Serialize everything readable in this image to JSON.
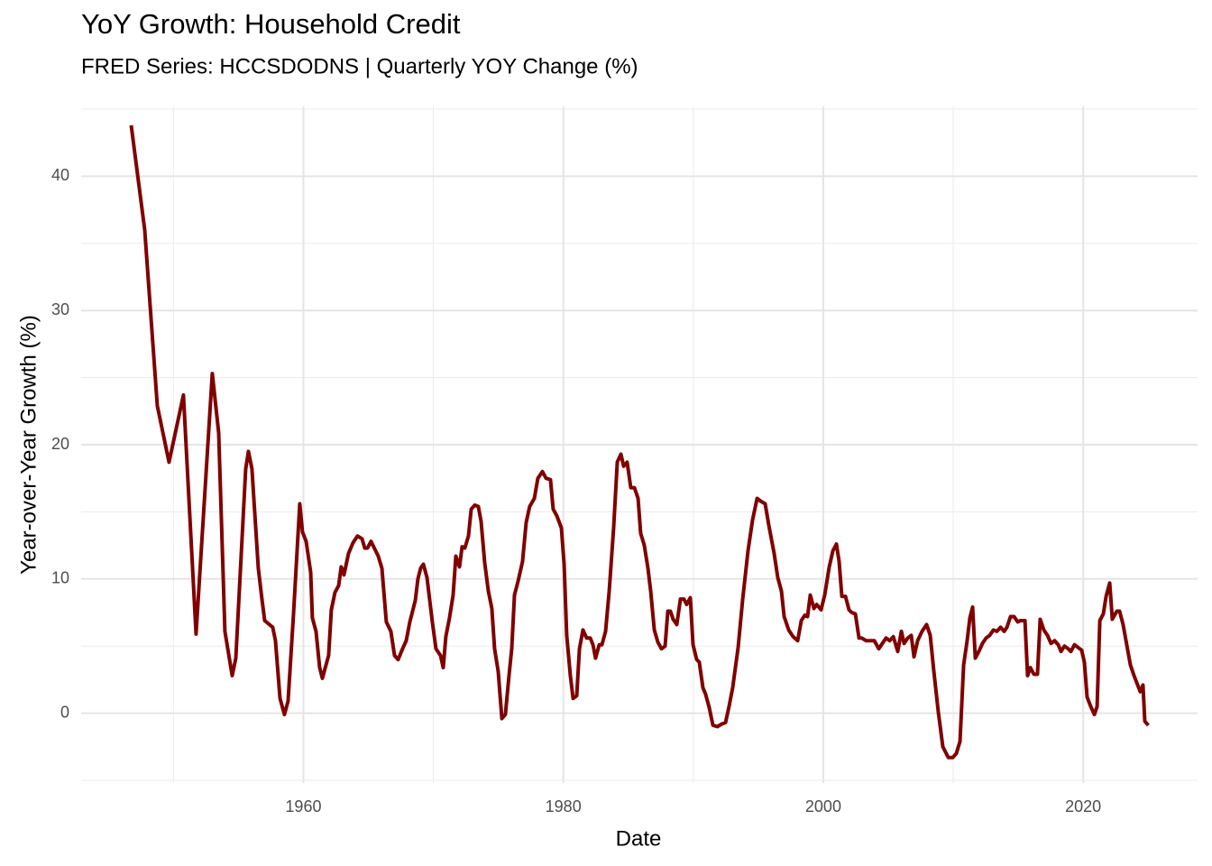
{
  "chart_data": {
    "type": "line",
    "title": "YoY Growth: Household Credit",
    "subtitle": "FRED Series: HCCSDODNS | Quarterly YOY Change (%)",
    "xlabel": "Date",
    "ylabel": "Year-over-Year Growth (%)",
    "color": "#800000",
    "grid": true,
    "xlim": [
      1942.9,
      2028.8
    ],
    "ylim": [
      -5.2,
      45.2
    ],
    "xticks": [
      1960,
      1980,
      2000,
      2020
    ],
    "yticks": [
      0,
      10,
      20,
      30,
      40
    ],
    "xminor": [
      1950,
      1970,
      1990,
      2010
    ],
    "yminor": [
      -5,
      5,
      15,
      25,
      35,
      45
    ],
    "x": [
      1946.75,
      1947.79,
      1948.76,
      1949.66,
      1950.77,
      1951.74,
      1952.99,
      1953.48,
      1953.96,
      1954.52,
      1954.8,
      1955.56,
      1955.77,
      1956.04,
      1956.53,
      1956.81,
      1957.02,
      1957.64,
      1957.85,
      1958.2,
      1958.54,
      1958.82,
      1959.24,
      1959.72,
      1959.93,
      1960.21,
      1960.56,
      1960.69,
      1960.97,
      1961.25,
      1961.46,
      1961.94,
      1962.15,
      1962.43,
      1962.71,
      1962.91,
      1963.12,
      1963.47,
      1963.82,
      1964.16,
      1964.51,
      1964.72,
      1964.93,
      1965.2,
      1965.76,
      1966.04,
      1966.38,
      1966.73,
      1967.01,
      1967.29,
      1967.63,
      1967.91,
      1968.19,
      1968.61,
      1968.81,
      1969.02,
      1969.23,
      1969.51,
      1969.92,
      1970.2,
      1970.55,
      1970.76,
      1970.96,
      1971.24,
      1971.52,
      1971.73,
      1972.01,
      1972.21,
      1972.42,
      1972.7,
      1972.91,
      1973.19,
      1973.46,
      1973.67,
      1973.95,
      1974.23,
      1974.5,
      1974.71,
      1974.99,
      1975.27,
      1975.54,
      1975.82,
      1976.03,
      1976.24,
      1976.51,
      1976.86,
      1977.14,
      1977.41,
      1977.77,
      1978.04,
      1978.39,
      1978.67,
      1979.01,
      1979.22,
      1979.5,
      1979.85,
      1980.06,
      1980.26,
      1980.54,
      1980.75,
      1981.03,
      1981.24,
      1981.51,
      1981.79,
      1982.07,
      1982.28,
      1982.48,
      1982.76,
      1982.97,
      1983.25,
      1983.53,
      1983.87,
      1984.15,
      1984.43,
      1984.64,
      1984.91,
      1985.19,
      1985.47,
      1985.75,
      1985.95,
      1986.23,
      1986.51,
      1986.72,
      1987.0,
      1987.27,
      1987.55,
      1987.83,
      1988.04,
      1988.24,
      1988.45,
      1988.73,
      1989.01,
      1989.28,
      1989.49,
      1989.77,
      1989.98,
      1990.26,
      1990.46,
      1990.74,
      1990.95,
      1991.23,
      1991.51,
      1991.85,
      1992.2,
      1992.48,
      1992.75,
      1993.03,
      1993.45,
      1993.8,
      1994.21,
      1994.56,
      1994.91,
      1995.18,
      1995.53,
      1995.81,
      1996.22,
      1996.5,
      1996.78,
      1996.99,
      1997.34,
      1997.68,
      1998.03,
      1998.31,
      1998.58,
      1998.79,
      1999.0,
      1999.28,
      1999.49,
      1999.83,
      2000.11,
      2000.46,
      2000.74,
      2001.01,
      2001.22,
      2001.43,
      2001.71,
      2001.98,
      2002.19,
      2002.47,
      2002.75,
      2002.96,
      2003.3,
      2003.58,
      2003.93,
      2004.27,
      2004.55,
      2004.83,
      2005.11,
      2005.39,
      2005.73,
      2006.01,
      2006.22,
      2006.5,
      2006.77,
      2006.98,
      2007.26,
      2007.6,
      2007.95,
      2008.23,
      2008.51,
      2008.85,
      2009.2,
      2009.62,
      2009.96,
      2010.24,
      2010.52,
      2010.8,
      2011.07,
      2011.28,
      2011.49,
      2011.7,
      2011.97,
      2012.25,
      2012.53,
      2012.81,
      2013.09,
      2013.36,
      2013.64,
      2013.92,
      2014.13,
      2014.41,
      2014.68,
      2014.96,
      2015.17,
      2015.52,
      2015.72,
      2015.93,
      2016.21,
      2016.48,
      2016.69,
      2016.97,
      2017.25,
      2017.52,
      2017.8,
      2018.08,
      2018.29,
      2018.56,
      2018.84,
      2019.05,
      2019.33,
      2019.6,
      2019.88,
      2020.09,
      2020.3,
      2020.58,
      2020.86,
      2021.07,
      2021.28,
      2021.55,
      2021.76,
      2022.04,
      2022.24,
      2022.59,
      2022.8,
      2023.07,
      2023.35,
      2023.63,
      2023.91,
      2024.19,
      2024.39,
      2024.6,
      2024.74,
      2025.01
    ],
    "values": [
      43.8,
      36.0,
      22.9,
      18.7,
      23.7,
      5.9,
      25.3,
      20.9,
      6.1,
      2.8,
      4.1,
      18.2,
      19.5,
      18.2,
      10.8,
      8.5,
      6.9,
      6.4,
      5.4,
      1.1,
      -0.1,
      0.9,
      7.4,
      15.6,
      13.5,
      12.8,
      10.5,
      7.1,
      6.1,
      3.4,
      2.6,
      4.3,
      7.7,
      9.0,
      9.5,
      10.9,
      10.3,
      11.9,
      12.7,
      13.2,
      13.0,
      12.3,
      12.3,
      12.8,
      11.7,
      10.8,
      6.8,
      6.1,
      4.3,
      4.0,
      4.8,
      5.4,
      6.8,
      8.4,
      10.0,
      10.8,
      11.1,
      10.1,
      6.8,
      4.8,
      4.3,
      3.4,
      5.7,
      7.1,
      8.8,
      11.7,
      10.9,
      12.4,
      12.3,
      13.2,
      15.2,
      15.5,
      15.4,
      14.3,
      11.2,
      9.1,
      7.8,
      4.8,
      3.1,
      -0.4,
      -0.1,
      2.8,
      4.8,
      8.8,
      9.8,
      11.3,
      14.2,
      15.4,
      16.0,
      17.5,
      18.0,
      17.5,
      17.4,
      15.2,
      14.7,
      13.8,
      11.1,
      5.8,
      2.8,
      1.1,
      1.3,
      4.8,
      6.2,
      5.6,
      5.6,
      5.1,
      4.1,
      5.1,
      5.1,
      6.1,
      9.1,
      13.8,
      18.7,
      19.3,
      18.4,
      18.7,
      16.8,
      16.8,
      16.0,
      13.4,
      12.5,
      10.8,
      9.1,
      6.2,
      5.3,
      4.8,
      5.0,
      7.6,
      7.6,
      7.0,
      6.6,
      8.5,
      8.5,
      8.1,
      8.6,
      5.1,
      4.0,
      3.8,
      1.9,
      1.4,
      0.4,
      -0.9,
      -1.0,
      -0.8,
      -0.7,
      0.5,
      1.9,
      4.9,
      8.5,
      12.1,
      14.4,
      16.0,
      15.8,
      15.6,
      14.0,
      11.9,
      10.1,
      9.1,
      7.2,
      6.2,
      5.7,
      5.4,
      6.9,
      7.3,
      7.2,
      8.8,
      7.8,
      8.1,
      7.7,
      8.8,
      10.9,
      12.1,
      12.6,
      11.3,
      8.7,
      8.7,
      7.7,
      7.5,
      7.4,
      5.6,
      5.6,
      5.4,
      5.4,
      5.4,
      4.8,
      5.2,
      5.6,
      5.4,
      5.7,
      4.6,
      6.1,
      5.2,
      5.6,
      5.8,
      4.2,
      5.4,
      6.1,
      6.6,
      5.8,
      3.1,
      0.1,
      -2.5,
      -3.3,
      -3.3,
      -3.0,
      -2.1,
      3.6,
      5.4,
      7.1,
      7.9,
      4.1,
      4.6,
      5.2,
      5.6,
      5.8,
      6.2,
      6.1,
      6.4,
      6.1,
      6.4,
      7.2,
      7.2,
      6.8,
      6.9,
      6.9,
      2.8,
      3.4,
      2.9,
      2.9,
      7.0,
      6.2,
      5.8,
      5.2,
      5.4,
      5.1,
      4.6,
      5.0,
      4.8,
      4.6,
      5.1,
      4.9,
      4.7,
      3.8,
      1.2,
      0.5,
      -0.1,
      0.5,
      6.9,
      7.4,
      8.7,
      9.7,
      7.0,
      7.6,
      7.6,
      6.6,
      5.1,
      3.6,
      2.8,
      2.1,
      1.6,
      2.1,
      -0.6,
      -0.9
    ]
  }
}
